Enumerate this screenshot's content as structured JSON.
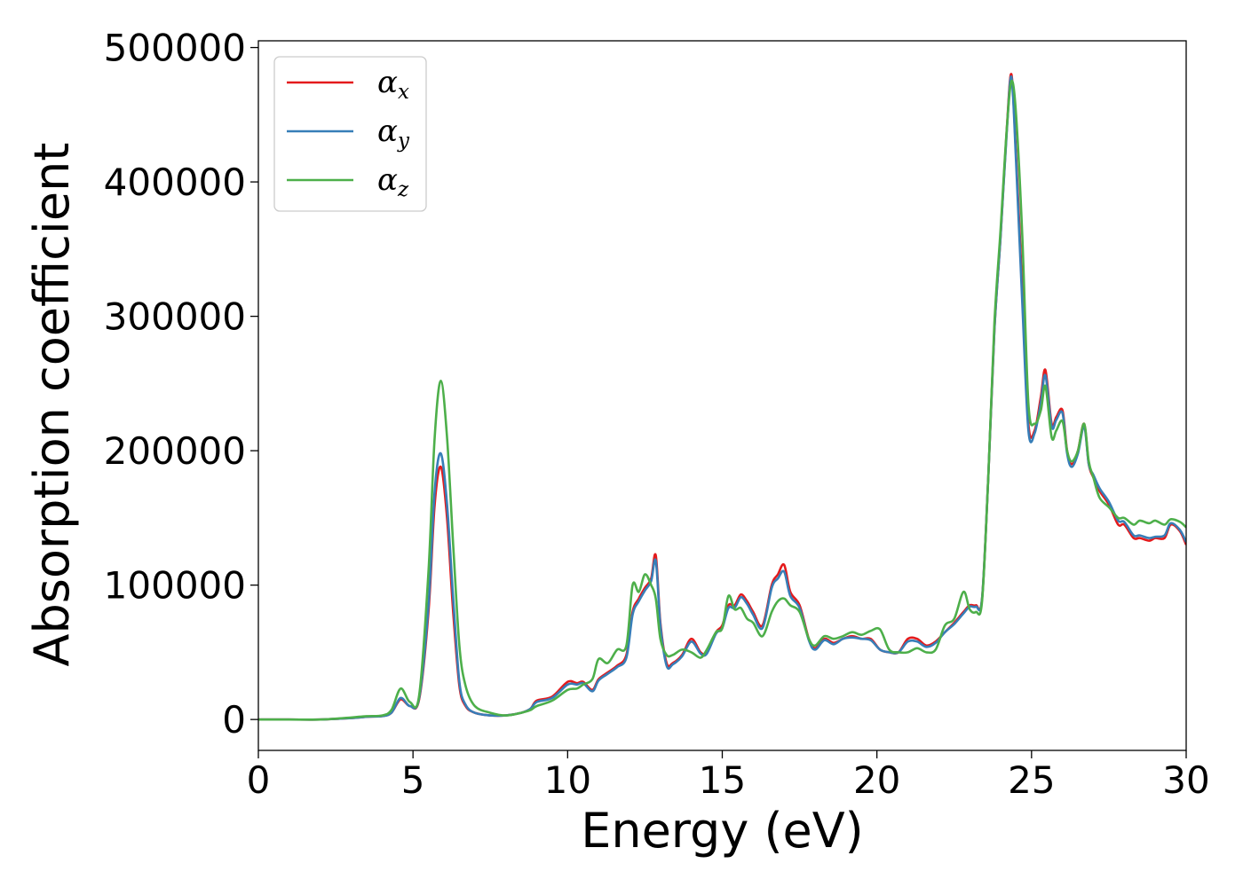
{
  "chart_data": {
    "type": "line",
    "title": "",
    "xlabel": "Energy (eV)",
    "ylabel": "Absorption coefficient",
    "xlim": [
      0,
      30
    ],
    "ylim": [
      -23000,
      505000
    ],
    "xticks": [
      0,
      5,
      10,
      15,
      20,
      25,
      30
    ],
    "yticks": [
      0,
      100000,
      200000,
      300000,
      400000,
      500000
    ],
    "grid": false,
    "legend_position": "top-left",
    "series": [
      {
        "name": "α_x",
        "label_base": "α",
        "label_sub": "x",
        "color": "#e41a1c",
        "x": [
          0,
          1,
          2,
          3,
          3.5,
          4,
          4.3,
          4.6,
          4.9,
          5.2,
          5.5,
          5.7,
          5.9,
          6.1,
          6.3,
          6.5,
          6.7,
          7.0,
          7.5,
          8.0,
          8.5,
          8.8,
          9.0,
          9.5,
          10.0,
          10.3,
          10.5,
          10.8,
          11.0,
          11.3,
          11.6,
          11.9,
          12.1,
          12.3,
          12.5,
          12.7,
          12.85,
          13.0,
          13.2,
          13.4,
          13.7,
          14.0,
          14.3,
          14.5,
          14.8,
          15.0,
          15.2,
          15.4,
          15.6,
          15.8,
          16.0,
          16.3,
          16.6,
          16.8,
          17.0,
          17.2,
          17.5,
          17.8,
          18.0,
          18.3,
          18.6,
          18.9,
          19.2,
          19.5,
          19.8,
          20.1,
          20.4,
          20.7,
          21.0,
          21.3,
          21.6,
          21.9,
          22.2,
          22.5,
          22.8,
          23.0,
          23.2,
          23.4,
          23.6,
          23.8,
          24.0,
          24.2,
          24.35,
          24.5,
          24.7,
          24.9,
          25.1,
          25.3,
          25.45,
          25.65,
          25.8,
          26.0,
          26.15,
          26.3,
          26.5,
          26.7,
          26.85,
          27.0,
          27.2,
          27.5,
          27.8,
          28.0,
          28.3,
          28.5,
          28.8,
          29.0,
          29.3,
          29.5,
          29.8,
          30.0
        ],
        "y": [
          0,
          0,
          0,
          1000,
          2000,
          2500,
          5000,
          15000,
          10000,
          15000,
          80000,
          160000,
          188000,
          150000,
          80000,
          25000,
          10000,
          5000,
          3000,
          3000,
          5000,
          8000,
          14000,
          17000,
          28000,
          27000,
          28000,
          22000,
          30000,
          35000,
          40000,
          48000,
          80000,
          90000,
          98000,
          105000,
          122000,
          72000,
          42000,
          42000,
          48000,
          60000,
          50000,
          50000,
          65000,
          70000,
          85000,
          85000,
          93000,
          88000,
          80000,
          70000,
          100000,
          108000,
          115000,
          95000,
          85000,
          60000,
          53000,
          60000,
          57000,
          60000,
          62000,
          60000,
          60000,
          52000,
          50000,
          50000,
          60000,
          60000,
          55000,
          58000,
          65000,
          72000,
          80000,
          85000,
          85000,
          90000,
          180000,
          290000,
          360000,
          440000,
          480000,
          420000,
          320000,
          220000,
          215000,
          240000,
          260000,
          220000,
          225000,
          230000,
          200000,
          190000,
          200000,
          220000,
          190000,
          180000,
          170000,
          160000,
          145000,
          145000,
          135000,
          135000,
          133000,
          135000,
          135000,
          145000,
          140000,
          130000
        ]
      },
      {
        "name": "α_y",
        "label_base": "α",
        "label_sub": "y",
        "color": "#377eb8",
        "x": [
          0,
          1,
          2,
          3,
          3.5,
          4,
          4.3,
          4.6,
          4.9,
          5.2,
          5.5,
          5.7,
          5.9,
          6.1,
          6.3,
          6.5,
          6.7,
          7.0,
          7.5,
          8.0,
          8.5,
          8.8,
          9.0,
          9.5,
          10.0,
          10.3,
          10.5,
          10.8,
          11.0,
          11.3,
          11.6,
          11.9,
          12.1,
          12.3,
          12.5,
          12.7,
          12.85,
          13.0,
          13.2,
          13.4,
          13.7,
          14.0,
          14.3,
          14.5,
          14.8,
          15.0,
          15.2,
          15.4,
          15.6,
          15.8,
          16.0,
          16.3,
          16.6,
          16.8,
          17.0,
          17.2,
          17.5,
          17.8,
          18.0,
          18.3,
          18.6,
          18.9,
          19.2,
          19.5,
          19.8,
          20.1,
          20.4,
          20.7,
          21.0,
          21.3,
          21.6,
          21.9,
          22.2,
          22.5,
          22.8,
          23.0,
          23.2,
          23.4,
          23.6,
          23.8,
          24.0,
          24.2,
          24.35,
          24.5,
          24.7,
          24.9,
          25.1,
          25.3,
          25.45,
          25.65,
          25.8,
          26.0,
          26.15,
          26.3,
          26.5,
          26.7,
          26.85,
          27.0,
          27.2,
          27.5,
          27.8,
          28.0,
          28.3,
          28.5,
          28.8,
          29.0,
          29.3,
          29.5,
          29.8,
          30.0
        ],
        "y": [
          0,
          0,
          0,
          1000,
          2000,
          2500,
          5000,
          16000,
          10000,
          16000,
          85000,
          170000,
          198000,
          160000,
          90000,
          28000,
          11000,
          5000,
          3000,
          3000,
          5000,
          8000,
          13000,
          16000,
          26000,
          26000,
          27000,
          21000,
          29000,
          34000,
          39000,
          46000,
          78000,
          88000,
          96000,
          103000,
          118000,
          70000,
          40000,
          41000,
          47000,
          58000,
          49000,
          49000,
          64000,
          68000,
          83000,
          83000,
          91000,
          86000,
          78000,
          68000,
          98000,
          105000,
          110000,
          92000,
          83000,
          59000,
          52000,
          59000,
          56000,
          60000,
          61000,
          60000,
          59000,
          52000,
          50000,
          50000,
          58000,
          58000,
          54000,
          57000,
          65000,
          71000,
          79000,
          84000,
          84000,
          90000,
          180000,
          290000,
          360000,
          438000,
          478000,
          415000,
          310000,
          215000,
          213000,
          236000,
          256000,
          218000,
          223000,
          228000,
          198000,
          188000,
          198000,
          218000,
          190000,
          182000,
          172000,
          162000,
          148000,
          147000,
          137000,
          137000,
          135000,
          136000,
          137000,
          146000,
          141000,
          132000
        ]
      },
      {
        "name": "α_z",
        "label_base": "α",
        "label_sub": "z",
        "color": "#4daf4a",
        "x": [
          0,
          1,
          2,
          3,
          3.5,
          4,
          4.3,
          4.6,
          4.9,
          5.2,
          5.5,
          5.7,
          5.9,
          6.1,
          6.3,
          6.5,
          6.7,
          7.0,
          7.5,
          8.0,
          8.5,
          8.8,
          9.0,
          9.5,
          10.0,
          10.3,
          10.5,
          10.8,
          11.0,
          11.3,
          11.6,
          11.9,
          12.1,
          12.3,
          12.5,
          12.7,
          12.85,
          13.0,
          13.2,
          13.4,
          13.7,
          14.0,
          14.3,
          14.5,
          14.8,
          15.0,
          15.2,
          15.4,
          15.6,
          15.8,
          16.0,
          16.3,
          16.6,
          16.8,
          17.0,
          17.2,
          17.5,
          17.8,
          18.0,
          18.3,
          18.6,
          18.9,
          19.2,
          19.5,
          19.8,
          20.1,
          20.4,
          20.7,
          21.0,
          21.3,
          21.6,
          21.9,
          22.2,
          22.5,
          22.8,
          23.0,
          23.2,
          23.4,
          23.6,
          23.8,
          24.0,
          24.2,
          24.35,
          24.5,
          24.7,
          24.9,
          25.1,
          25.3,
          25.45,
          25.65,
          25.8,
          26.0,
          26.15,
          26.3,
          26.5,
          26.7,
          26.85,
          27.0,
          27.2,
          27.5,
          27.8,
          28.0,
          28.3,
          28.5,
          28.8,
          29.0,
          29.3,
          29.5,
          29.8,
          30.0
        ],
        "y": [
          0,
          0,
          0,
          1500,
          2500,
          3000,
          7000,
          23000,
          13000,
          18000,
          110000,
          210000,
          252000,
          210000,
          130000,
          55000,
          25000,
          10000,
          5000,
          3000,
          5000,
          7000,
          10000,
          14000,
          22000,
          23000,
          26000,
          30000,
          45000,
          42000,
          52000,
          55000,
          100000,
          95000,
          108000,
          100000,
          90000,
          60000,
          48000,
          48000,
          52000,
          50000,
          46000,
          52000,
          65000,
          68000,
          92000,
          82000,
          83000,
          75000,
          72000,
          62000,
          80000,
          88000,
          90000,
          85000,
          80000,
          60000,
          55000,
          62000,
          60000,
          62000,
          65000,
          63000,
          66000,
          67000,
          52000,
          50000,
          50000,
          53000,
          50000,
          52000,
          70000,
          75000,
          95000,
          82000,
          80000,
          88000,
          180000,
          295000,
          365000,
          440000,
          475000,
          450000,
          360000,
          235000,
          220000,
          230000,
          248000,
          210000,
          215000,
          222000,
          200000,
          192000,
          200000,
          220000,
          192000,
          180000,
          165000,
          158000,
          150000,
          150000,
          145000,
          148000,
          146000,
          148000,
          145000,
          149000,
          147000,
          143000
        ]
      }
    ]
  }
}
